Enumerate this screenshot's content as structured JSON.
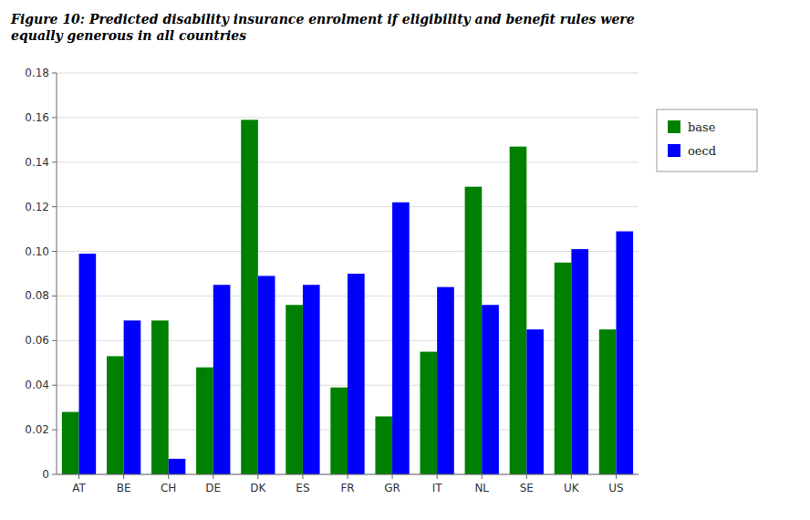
{
  "chart_data": {
    "type": "bar",
    "title": "Figure 10: Predicted disability insurance enrolment if eligibility and benefit rules were\nequally generous in all countries",
    "categories": [
      "AT",
      "BE",
      "CH",
      "DE",
      "DK",
      "ES",
      "FR",
      "GR",
      "IT",
      "NL",
      "SE",
      "UK",
      "US"
    ],
    "series": [
      {
        "name": "base",
        "color": "#008000",
        "values": [
          0.028,
          0.053,
          0.069,
          0.048,
          0.159,
          0.076,
          0.039,
          0.026,
          0.055,
          0.129,
          0.147,
          0.095,
          0.065
        ]
      },
      {
        "name": "oecd",
        "color": "#0000FF",
        "values": [
          0.099,
          0.069,
          0.007,
          0.085,
          0.089,
          0.085,
          0.09,
          0.122,
          0.084,
          0.076,
          0.065,
          0.101,
          0.109
        ]
      }
    ],
    "ylim": [
      0,
      0.18
    ],
    "yticks": [
      0,
      0.02,
      0.04,
      0.06,
      0.08,
      {
        "value": 0.1,
        "label": "0.10"
      },
      0.12,
      0.14,
      0.16,
      0.18
    ],
    "grid": true,
    "legend": "right"
  }
}
